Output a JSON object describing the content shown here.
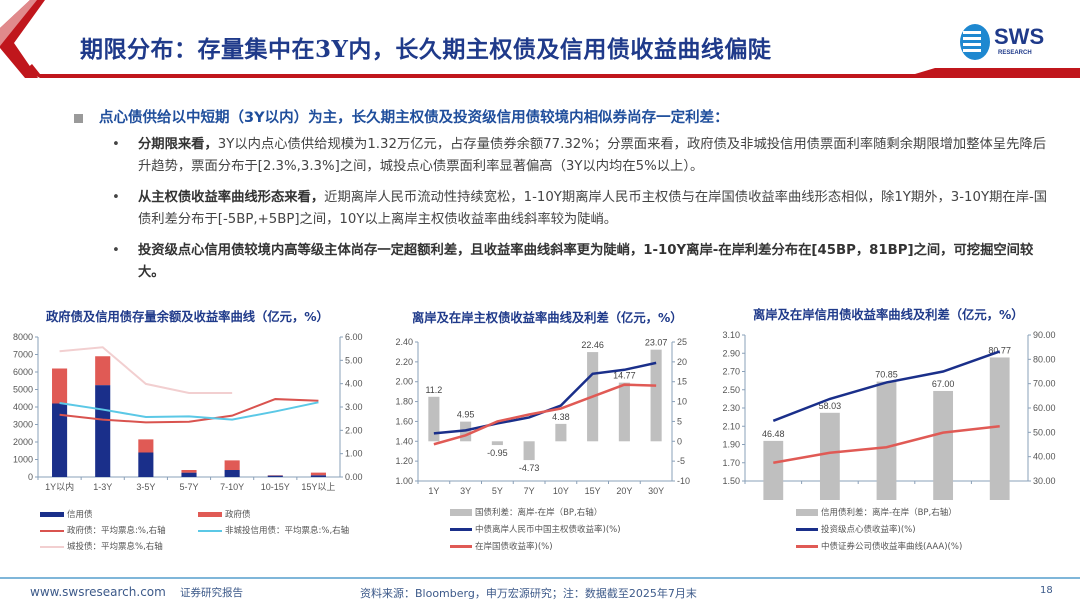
{
  "header": {
    "title": "期限分布：存量集中在3Y内，长久期主权债及信用债收益曲线偏陡",
    "logo_text": "SWS",
    "logo_sub": "RESEARCH",
    "accent_color": "#c0161c",
    "title_color": "#1f3a8a"
  },
  "lead": "点心债供给以中短期（3Y以内）为主，长久期主权债及投资级信用债较境内相似券尚存一定利差：",
  "bullets": [
    {
      "bold": "分期限来看，",
      "text": "3Y以内点心债供给规模为1.32万亿元，占存量债券余额77.32%；分票面来看，政府债及非城投信用债票面利率随剩余期限增加整体呈先降后升趋势，票面分布于[2.3%,3.3%]之间，城投点心债票面利率显著偏高（3Y以内均在5%以上）。"
    },
    {
      "bold": "从主权债收益率曲线形态来看，",
      "text": "近期离岸人民币流动性持续宽松，1-10Y期离岸人民币主权债与在岸国债收益率曲线形态相似，除1Y期外，3-10Y期在岸-国债利差分布于[-5BP,+5BP]之间，10Y以上离岸主权债收益率曲线斜率较为陡峭。"
    },
    {
      "bold": "投资级点心信用债较境内高等级主体尚存一定超额利差，且收益率曲线斜率更为陡峭，1-10Y离岸-在岸利差分布在[45BP，81BP]之间，可挖掘空间较大。",
      "text": ""
    }
  ],
  "chart_data": [
    {
      "type": "bar",
      "title": "政府债及信用债存量余额及收益率曲线（亿元，%）",
      "categories": [
        "1Y以内",
        "1-3Y",
        "3-5Y",
        "5-7Y",
        "7-10Y",
        "10-15Y",
        "15Y以上"
      ],
      "ylim": [
        0,
        8000
      ],
      "yticks": [
        "0",
        "1000",
        "2000",
        "3000",
        "4000",
        "5000",
        "6000",
        "7000",
        "8000"
      ],
      "y2lim": [
        0,
        6
      ],
      "y2ticks": [
        "0.00",
        "1.00",
        "2.00",
        "3.00",
        "4.00",
        "5.00",
        "6.00"
      ],
      "stacked": true,
      "series": [
        {
          "name": "信用债",
          "kind": "bar",
          "color": "#1a2f8a",
          "values": [
            4200,
            5250,
            1400,
            250,
            400,
            80,
            100
          ]
        },
        {
          "name": "政府债",
          "kind": "bar",
          "color": "#e05a55",
          "values": [
            2000,
            1650,
            750,
            150,
            550,
            20,
            150
          ]
        },
        {
          "name": "政府债：平均票息:%,右轴",
          "kind": "line",
          "axis": "right",
          "color": "#d9534f",
          "values": [
            2.67,
            2.46,
            2.34,
            2.37,
            2.63,
            3.34,
            3.27
          ]
        },
        {
          "name": "非城投信用债：平均票息:%,右轴",
          "kind": "line",
          "axis": "right",
          "color": "#5bc8e6",
          "values": [
            3.17,
            2.89,
            2.57,
            2.6,
            2.46,
            2.81,
            3.2
          ]
        },
        {
          "name": "城投债：平均票息%,右轴",
          "kind": "line",
          "axis": "right",
          "color": "#f2cfd0",
          "values": [
            5.39,
            5.56,
            3.99,
            3.6,
            3.6,
            null,
            null
          ]
        }
      ],
      "legend": "bottom"
    },
    {
      "type": "bar",
      "title": "离岸及在岸主权债收益率曲线及利差（亿元，%）",
      "categories": [
        "1Y",
        "3Y",
        "5Y",
        "7Y",
        "10Y",
        "15Y",
        "20Y",
        "30Y"
      ],
      "ylim": [
        1.0,
        2.4
      ],
      "yticks": [
        "1.00",
        "1.20",
        "1.40",
        "1.60",
        "1.80",
        "2.00",
        "2.20",
        "2.40"
      ],
      "y2lim": [
        -10,
        25
      ],
      "y2ticks": [
        "-10",
        "-5",
        "0",
        "5",
        "10",
        "15",
        "20",
        "25"
      ],
      "series": [
        {
          "name": "国债利差：离岸-在岸（BP,右轴）",
          "kind": "bar",
          "axis": "right",
          "color": "#bfbfbf",
          "values": [
            11.2,
            4.95,
            -0.95,
            -4.73,
            4.38,
            22.46,
            14.77,
            23.07
          ],
          "labels": [
            "11.2",
            "4.95",
            "-0.95",
            "-4.73",
            "4.38",
            "22.46",
            "14.77",
            "23.07"
          ]
        },
        {
          "name": "中债离岸人民币中国主权债收益率)(%)",
          "kind": "line",
          "color": "#1a2f8a",
          "values": [
            1.48,
            1.51,
            1.58,
            1.64,
            1.76,
            2.08,
            2.12,
            2.19
          ]
        },
        {
          "name": "在岸国债收益率)(%)",
          "kind": "line",
          "color": "#e05a55",
          "values": [
            1.37,
            1.46,
            1.6,
            1.67,
            1.73,
            1.85,
            1.97,
            1.96
          ]
        }
      ],
      "legend": "bottom"
    },
    {
      "type": "bar",
      "title": "离岸及在岸信用债收益率曲线及利差（亿元，%）",
      "categories": [
        "1Y",
        "3Y",
        "5Y",
        "7Y",
        "10Y"
      ],
      "ylim": [
        1.5,
        3.1
      ],
      "yticks": [
        "1.50",
        "1.70",
        "1.90",
        "2.10",
        "2.30",
        "2.50",
        "2.70",
        "2.90",
        "3.10"
      ],
      "y2lim": [
        30,
        90
      ],
      "y2ticks": [
        "30.00",
        "40.00",
        "50.00",
        "60.00",
        "70.00",
        "80.00",
        "90.00"
      ],
      "series": [
        {
          "name": "信用债利差：离岸-在岸（BP,右轴）",
          "kind": "bar",
          "axis": "right",
          "color": "#bfbfbf",
          "values": [
            46.48,
            58.03,
            70.85,
            67.0,
            80.77
          ],
          "labels": [
            "46.48",
            "58.03",
            "70.85",
            "67.00",
            "80.77"
          ]
        },
        {
          "name": "投资级点心债收益率)(%)",
          "kind": "line",
          "color": "#1a2f8a",
          "values": [
            2.16,
            2.4,
            2.58,
            2.7,
            2.92
          ]
        },
        {
          "name": "中债证券公司债收益率曲线(AAA)(%)",
          "kind": "line",
          "color": "#e05a55",
          "values": [
            1.7,
            1.81,
            1.87,
            2.03,
            2.1
          ]
        }
      ],
      "legend": "bottom"
    }
  ],
  "footer": {
    "website": "www.swsresearch.com",
    "doc_type": "证券研究报告",
    "source": "资料来源：Bloomberg，申万宏源研究；注：数据截至2025年7月末",
    "page": "18"
  }
}
